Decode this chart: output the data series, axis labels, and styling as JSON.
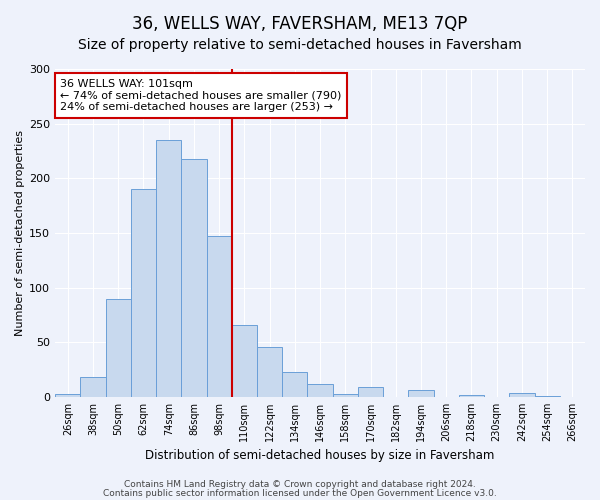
{
  "title": "36, WELLS WAY, FAVERSHAM, ME13 7QP",
  "subtitle": "Size of property relative to semi-detached houses in Faversham",
  "xlabel": "Distribution of semi-detached houses by size in Faversham",
  "ylabel": "Number of semi-detached properties",
  "categories": [
    "26sqm",
    "38sqm",
    "50sqm",
    "62sqm",
    "74sqm",
    "86sqm",
    "98sqm",
    "110sqm",
    "122sqm",
    "134sqm",
    "146sqm",
    "158sqm",
    "170sqm",
    "182sqm",
    "194sqm",
    "206sqm",
    "218sqm",
    "230sqm",
    "242sqm",
    "254sqm",
    "266sqm"
  ],
  "values": [
    3,
    18,
    90,
    190,
    235,
    218,
    147,
    66,
    46,
    23,
    12,
    3,
    9,
    0,
    6,
    0,
    2,
    0,
    4,
    1,
    0
  ],
  "bar_color": "#c8d9ee",
  "bar_edge_color": "#6a9fd8",
  "vline_color": "#cc0000",
  "vline_x_index": 6.5,
  "annotation_text": "36 WELLS WAY: 101sqm\n← 74% of semi-detached houses are smaller (790)\n24% of semi-detached houses are larger (253) →",
  "annotation_box_facecolor": "white",
  "annotation_box_edgecolor": "#cc0000",
  "ylim": [
    0,
    300
  ],
  "yticks": [
    0,
    50,
    100,
    150,
    200,
    250,
    300
  ],
  "footer1": "Contains HM Land Registry data © Crown copyright and database right 2024.",
  "footer2": "Contains public sector information licensed under the Open Government Licence v3.0.",
  "background_color": "#eef2fb",
  "grid_color": "#ffffff",
  "title_fontsize": 12,
  "subtitle_fontsize": 10,
  "xlabel_fontsize": 8.5,
  "ylabel_fontsize": 8,
  "tick_fontsize": 7,
  "annotation_fontsize": 8,
  "footer_fontsize": 6.5
}
